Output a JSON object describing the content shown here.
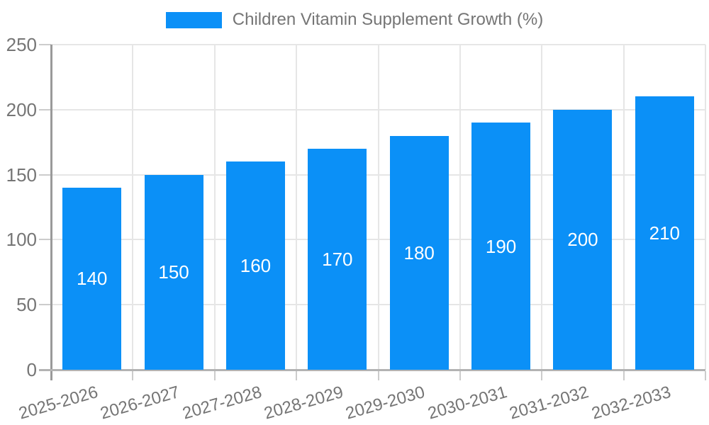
{
  "legend": {
    "label": "Children Vitamin Supplement Growth (%)"
  },
  "chart_data": {
    "type": "bar",
    "title": "Children Vitamin Supplement Growth (%)",
    "categories": [
      "2025-2026",
      "2026-2027",
      "2027-2028",
      "2028-2029",
      "2029-2030",
      "2030-2031",
      "2031-2032",
      "2032-2033"
    ],
    "values": [
      140,
      150,
      160,
      170,
      180,
      190,
      200,
      210
    ],
    "bar_labels": [
      "140",
      "150",
      "160",
      "170",
      "180",
      "190",
      "200",
      "210"
    ],
    "xlabel": "",
    "ylabel": "",
    "ylim": [
      0,
      250
    ],
    "yticks": [
      0,
      50,
      100,
      150,
      200,
      250
    ],
    "grid": true,
    "legend_position": "top-center",
    "bar_label_position": "center-of-bar",
    "colors": {
      "bar": "#0B90F7",
      "bar_label_text": "#FFFFFF",
      "axis_text": "#757575",
      "legend_text": "#757575",
      "grid_line": "#E6E6E6",
      "axis_line": "#9A9A9A",
      "baseline": "#B3B3B3",
      "tick": "#CCCCCC",
      "background": "#FFFFFF"
    }
  }
}
